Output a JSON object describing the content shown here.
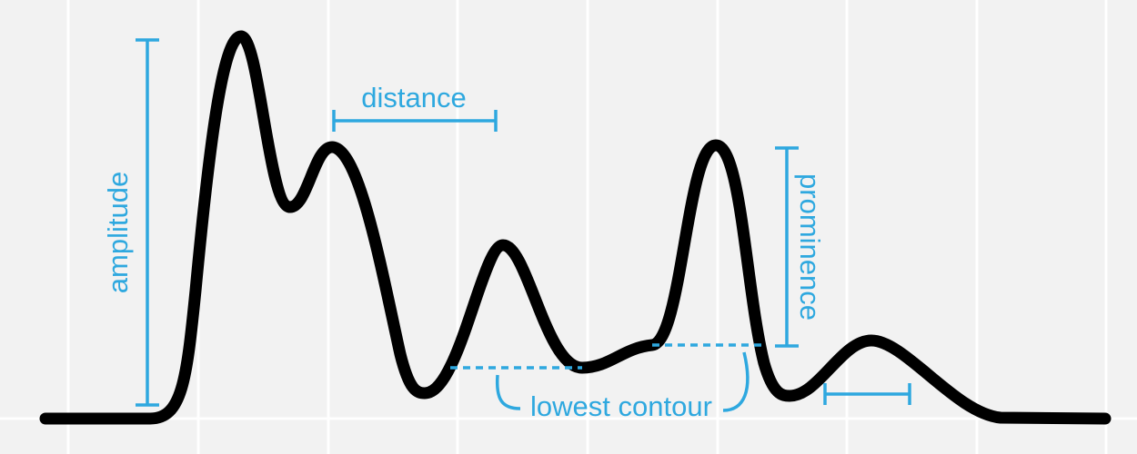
{
  "colors": {
    "background": "#f2f2f2",
    "grid": "#ffffff",
    "signal": "#000000",
    "annotation": "#2ea8df"
  },
  "labels": {
    "amplitude": "amplitude",
    "distance": "distance",
    "prominence": "prominence",
    "lowest_contour": "lowest contour"
  }
}
